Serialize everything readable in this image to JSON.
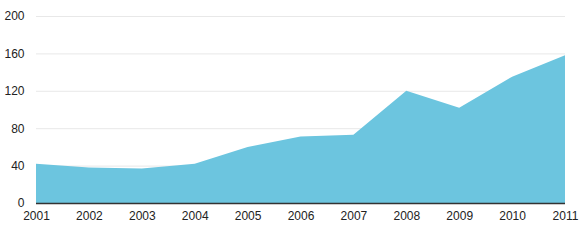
{
  "chart_data": {
    "type": "area",
    "x": [
      2001,
      2002,
      2003,
      2004,
      2005,
      2006,
      2007,
      2008,
      2009,
      2010,
      2011
    ],
    "values": [
      42,
      38,
      37,
      42,
      60,
      71,
      73,
      120,
      102,
      135,
      158
    ],
    "color": "#6cc5df",
    "xlim": [
      2001,
      2011
    ],
    "xticks": [
      2001,
      2002,
      2003,
      2004,
      2005,
      2006,
      2007,
      2008,
      2009,
      2010,
      2011
    ],
    "ylim": [
      0,
      200
    ],
    "yticks": [
      0,
      40,
      80,
      120,
      160,
      200
    ],
    "grid": true
  }
}
